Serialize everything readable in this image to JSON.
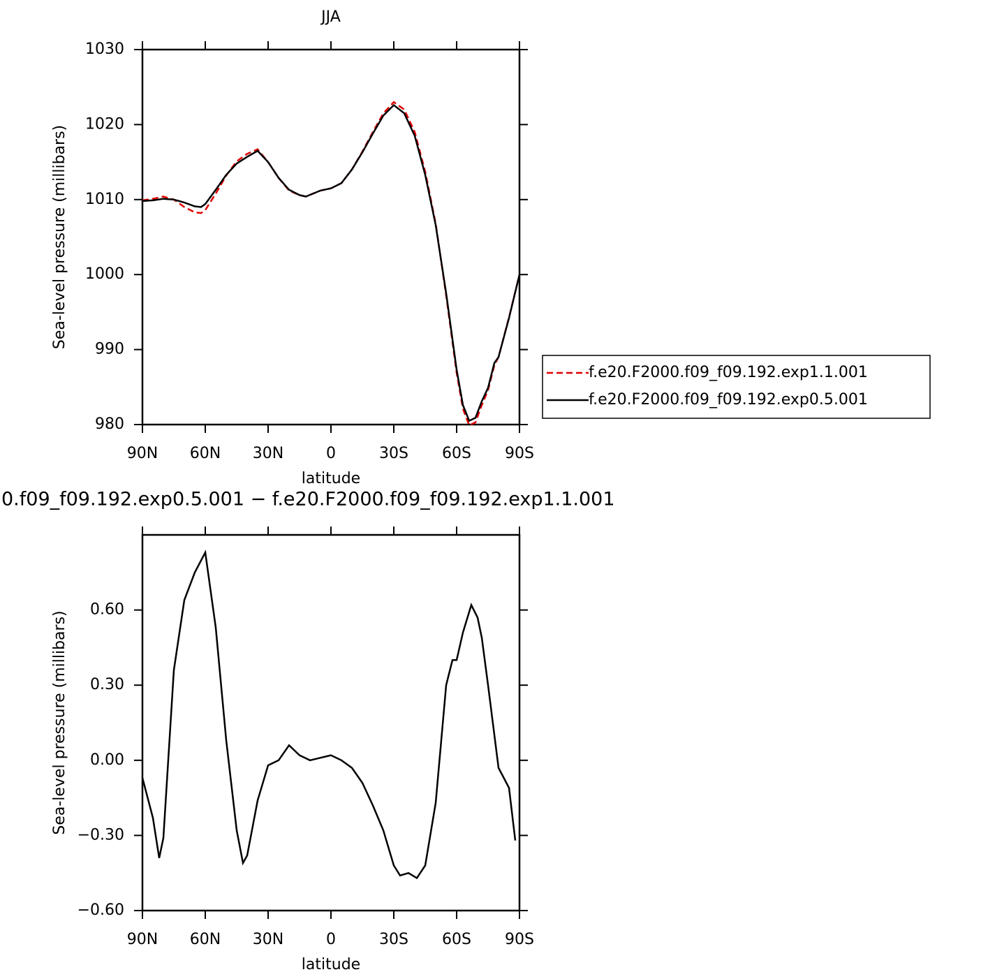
{
  "chart_data": [
    {
      "type": "line",
      "title": "JJA",
      "xlabel": "latitude",
      "ylabel": "Sea-level pressure (millibars)",
      "x": [
        90,
        85,
        80,
        75,
        70,
        65,
        62,
        60,
        55,
        50,
        45,
        40,
        35,
        30,
        25,
        20,
        15,
        12,
        5,
        0,
        -5,
        -10,
        -15,
        -20,
        -25,
        -30,
        -35,
        -40,
        -45,
        -50,
        -55,
        -60,
        -63,
        -66,
        -69,
        -72,
        -75,
        -78,
        -80,
        -85,
        -90
      ],
      "series": [
        {
          "name": "f.e20.F2000.f09_f09.192.exp1.1.001",
          "color": "#e00000",
          "dash": true,
          "values": [
            1009.9,
            1010.1,
            1010.4,
            1010.0,
            1009.0,
            1008.3,
            1008.2,
            1008.6,
            1010.8,
            1013.2,
            1015.1,
            1016.1,
            1016.7,
            1015.0,
            1012.9,
            1011.2,
            1010.6,
            1010.4,
            1011.2,
            1011.5,
            1012.2,
            1014.0,
            1016.4,
            1019.0,
            1021.5,
            1023.0,
            1022.0,
            1019.0,
            1013.7,
            1006.8,
            997.2,
            986.9,
            982.1,
            979.9,
            980.3,
            982.6,
            984.6,
            987.9,
            989.0,
            994.3,
            1000.0
          ]
        },
        {
          "name": "f.e20.F2000.f09_f09.192.exp0.5.001",
          "color": "#000000",
          "dash": false,
          "values": [
            1009.8,
            1009.9,
            1010.1,
            1010.0,
            1009.6,
            1009.1,
            1009.0,
            1009.4,
            1011.3,
            1013.3,
            1014.8,
            1015.7,
            1016.5,
            1015.0,
            1012.9,
            1011.3,
            1010.6,
            1010.4,
            1011.2,
            1011.5,
            1012.2,
            1014.0,
            1016.3,
            1018.8,
            1021.2,
            1022.6,
            1021.5,
            1018.5,
            1013.3,
            1006.6,
            997.5,
            987.3,
            982.6,
            980.5,
            980.9,
            983.1,
            984.9,
            988.2,
            989.0,
            994.2,
            1000.0
          ]
        }
      ],
      "xlim": [
        90,
        -90
      ],
      "xticks": [
        {
          "value": 90,
          "label": "90N"
        },
        {
          "value": 60,
          "label": "60N"
        },
        {
          "value": 30,
          "label": "30N"
        },
        0,
        {
          "value": -30,
          "label": "30S"
        },
        {
          "value": -60,
          "label": "60S"
        },
        {
          "value": -90,
          "label": "90S"
        }
      ],
      "ylim": [
        980,
        1030
      ],
      "yticks": [
        980,
        990,
        1000,
        1010,
        1020,
        1030
      ],
      "legend": "right"
    },
    {
      "type": "line",
      "title": "0.f09_f09.192.exp0.5.001 − f.e20.F2000.f09_f09.192.exp1.1.001",
      "xlabel": "latitude",
      "ylabel": "Sea-level pressure (millibars)",
      "x": [
        90,
        85,
        82,
        80,
        75,
        70,
        65,
        60,
        55,
        50,
        45,
        42,
        40,
        35,
        30,
        25,
        20,
        15,
        10,
        5,
        0,
        -5,
        -10,
        -15,
        -20,
        -25,
        -30,
        -33,
        -37,
        -41,
        -45,
        -50,
        -55,
        -58,
        -60,
        -63,
        -67,
        -70,
        -72,
        -75,
        -80,
        -85,
        -88
      ],
      "values": [
        -0.07,
        -0.23,
        -0.39,
        -0.31,
        0.36,
        0.64,
        0.75,
        0.83,
        0.53,
        0.08,
        -0.28,
        -0.41,
        -0.38,
        -0.16,
        -0.02,
        0.0,
        0.06,
        0.02,
        0.0,
        0.01,
        0.02,
        0.0,
        -0.03,
        -0.09,
        -0.18,
        -0.28,
        -0.42,
        -0.46,
        -0.45,
        -0.47,
        -0.42,
        -0.17,
        0.3,
        0.4,
        0.4,
        0.51,
        0.62,
        0.57,
        0.49,
        0.3,
        -0.03,
        -0.11,
        -0.32
      ],
      "color": "#000000",
      "xlim": [
        90,
        -90
      ],
      "xticks": [
        {
          "value": 90,
          "label": "90N"
        },
        {
          "value": 60,
          "label": "60N"
        },
        {
          "value": 30,
          "label": "30N"
        },
        0,
        {
          "value": -30,
          "label": "30S"
        },
        {
          "value": -60,
          "label": "60S"
        },
        {
          "value": -90,
          "label": "90S"
        }
      ],
      "ylim": [
        -0.6,
        0.9
      ],
      "yticks": [
        {
          "value": -0.6,
          "label": "−0.60"
        },
        {
          "value": -0.3,
          "label": "−0.30"
        },
        {
          "value": 0,
          "label": "0.00"
        },
        {
          "value": 0.3,
          "label": "0.30"
        },
        {
          "value": 0.6,
          "label": "0.60"
        }
      ]
    }
  ]
}
